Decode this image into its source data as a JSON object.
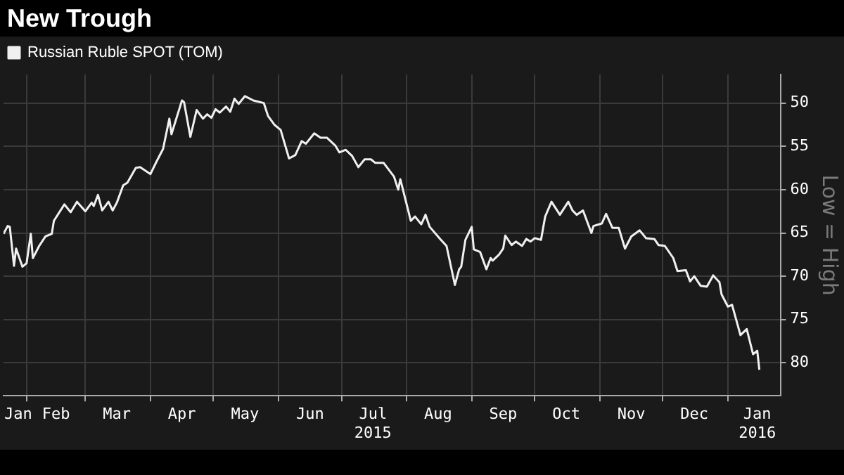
{
  "chart_data": {
    "type": "line",
    "title": "New Trough",
    "ylabel": "Low = High",
    "x": [
      "2015-01-21",
      "2015-01-23",
      "2015-01-24",
      "2015-01-26",
      "2015-01-27",
      "2015-01-30",
      "2015-02-01",
      "2015-02-03",
      "2015-02-04",
      "2015-02-07",
      "2015-02-10",
      "2015-02-13",
      "2015-02-14",
      "2015-02-19",
      "2015-02-22",
      "2015-02-25",
      "2015-03-01",
      "2015-03-04",
      "2015-03-05",
      "2015-03-07",
      "2015-03-09",
      "2015-03-12",
      "2015-03-14",
      "2015-03-16",
      "2015-03-19",
      "2015-03-21",
      "2015-03-25",
      "2015-03-27",
      "2015-04-01",
      "2015-04-04",
      "2015-04-07",
      "2015-04-10",
      "2015-04-11",
      "2015-04-16",
      "2015-04-17",
      "2015-04-20",
      "2015-04-23",
      "2015-04-26",
      "2015-04-28",
      "2015-04-30",
      "2015-05-02",
      "2015-05-04",
      "2015-05-07",
      "2015-05-09",
      "2015-05-11",
      "2015-05-13",
      "2015-05-16",
      "2015-05-20",
      "2015-05-25",
      "2015-05-27",
      "2015-05-30",
      "2015-06-02",
      "2015-06-06",
      "2015-06-09",
      "2015-06-12",
      "2015-06-14",
      "2015-06-18",
      "2015-06-21",
      "2015-06-24",
      "2015-06-28",
      "2015-06-30",
      "2015-07-03",
      "2015-07-06",
      "2015-07-09",
      "2015-07-12",
      "2015-07-15",
      "2015-07-17",
      "2015-07-21",
      "2015-07-26",
      "2015-07-28",
      "2015-07-29",
      "2015-08-03",
      "2015-08-05",
      "2015-08-08",
      "2015-08-10",
      "2015-08-12",
      "2015-08-17",
      "2015-08-20",
      "2015-08-24",
      "2015-08-26",
      "2015-08-27",
      "2015-08-29",
      "2015-09-01",
      "2015-09-02",
      "2015-09-05",
      "2015-09-08",
      "2015-09-10",
      "2015-09-11",
      "2015-09-14",
      "2015-09-16",
      "2015-09-17",
      "2015-09-20",
      "2015-09-22",
      "2015-09-25",
      "2015-09-27",
      "2015-09-29",
      "2015-10-01",
      "2015-10-04",
      "2015-10-06",
      "2015-10-09",
      "2015-10-13",
      "2015-10-17",
      "2015-10-19",
      "2015-10-21",
      "2015-10-24",
      "2015-10-28",
      "2015-10-29",
      "2015-11-02",
      "2015-11-04",
      "2015-11-07",
      "2015-11-10",
      "2015-11-13",
      "2015-11-16",
      "2015-11-20",
      "2015-11-23",
      "2015-11-27",
      "2015-11-29",
      "2015-12-02",
      "2015-12-06",
      "2015-12-08",
      "2015-12-12",
      "2015-12-14",
      "2015-12-16",
      "2015-12-19",
      "2015-12-22",
      "2015-12-25",
      "2015-12-28",
      "2015-12-29",
      "2016-01-01",
      "2016-01-03",
      "2016-01-07",
      "2016-01-10",
      "2016-01-13",
      "2016-01-15",
      "2016-01-16"
    ],
    "series": [
      {
        "name": "Russian Ruble SPOT (TOM)",
        "color": "#f0f0f0",
        "values": [
          65.1,
          64.2,
          64.3,
          68.8,
          66.8,
          68.9,
          68.5,
          65.1,
          67.9,
          66.5,
          65.4,
          65.1,
          63.6,
          61.7,
          62.6,
          61.4,
          62.5,
          61.5,
          61.9,
          60.6,
          62.4,
          61.4,
          62.4,
          61.5,
          59.5,
          59.2,
          57.5,
          57.4,
          58.2,
          56.7,
          55.3,
          51.8,
          53.6,
          49.7,
          49.9,
          53.9,
          50.8,
          51.8,
          51.3,
          51.7,
          50.7,
          51.1,
          50.4,
          51.0,
          49.5,
          50.1,
          49.2,
          49.7,
          50.0,
          51.5,
          52.5,
          53.1,
          56.4,
          56.0,
          54.4,
          54.7,
          53.5,
          54.0,
          54.0,
          54.9,
          55.7,
          55.4,
          56.1,
          57.4,
          56.5,
          56.5,
          56.9,
          56.9,
          58.5,
          60.0,
          58.8,
          63.6,
          63.1,
          64.0,
          62.9,
          64.3,
          65.7,
          66.5,
          71.0,
          69.2,
          68.9,
          65.8,
          64.3,
          66.9,
          67.2,
          69.2,
          67.9,
          68.2,
          67.5,
          66.8,
          65.3,
          66.4,
          66.0,
          66.5,
          65.7,
          66.0,
          65.6,
          65.8,
          63.1,
          61.4,
          62.9,
          61.4,
          62.4,
          62.9,
          62.4,
          65.0,
          64.2,
          63.9,
          62.8,
          64.4,
          64.4,
          66.8,
          65.4,
          64.7,
          65.6,
          65.7,
          66.4,
          66.5,
          67.9,
          69.4,
          69.3,
          70.6,
          70.0,
          71.1,
          71.2,
          69.9,
          70.7,
          72.1,
          73.5,
          73.3,
          76.8,
          76.1,
          79.0,
          78.6,
          80.8
        ]
      }
    ],
    "xlim": [
      "2015-01-21",
      "2016-01-26"
    ],
    "xticks": [
      {
        "value": "2015-01-28",
        "label": "Jan"
      },
      {
        "value": "2015-02-01",
        "label": null
      },
      {
        "value": "2015-02-15",
        "label": "Feb"
      },
      {
        "value": "2015-03-01",
        "label": null
      },
      {
        "value": "2015-03-16",
        "label": "Mar"
      },
      {
        "value": "2015-04-01",
        "label": null
      },
      {
        "value": "2015-04-16",
        "label": "Apr"
      },
      {
        "value": "2015-05-01",
        "label": null
      },
      {
        "value": "2015-05-16",
        "label": "May"
      },
      {
        "value": "2015-06-01",
        "label": null
      },
      {
        "value": "2015-06-16",
        "label": "Jun"
      },
      {
        "value": "2015-07-01",
        "label": null
      },
      {
        "value": "2015-07-16",
        "label": "Jul\n2015"
      },
      {
        "value": "2015-08-01",
        "label": null
      },
      {
        "value": "2015-08-16",
        "label": "Aug"
      },
      {
        "value": "2015-09-01",
        "label": null
      },
      {
        "value": "2015-09-16",
        "label": "Sep"
      },
      {
        "value": "2015-10-01",
        "label": null
      },
      {
        "value": "2015-10-16",
        "label": "Oct"
      },
      {
        "value": "2015-11-01",
        "label": null
      },
      {
        "value": "2015-11-16",
        "label": "Nov"
      },
      {
        "value": "2015-12-01",
        "label": null
      },
      {
        "value": "2015-12-16",
        "label": "Dec"
      },
      {
        "value": "2016-01-01",
        "label": null
      },
      {
        "value": "2016-01-15",
        "label": "Jan\n2016"
      }
    ],
    "ylim": [
      83.8,
      46.7
    ],
    "yticks": [
      50,
      55,
      60,
      65,
      70,
      75,
      80
    ],
    "grid": true,
    "legend": "top left",
    "marker": "none",
    "line_style": "solid"
  }
}
